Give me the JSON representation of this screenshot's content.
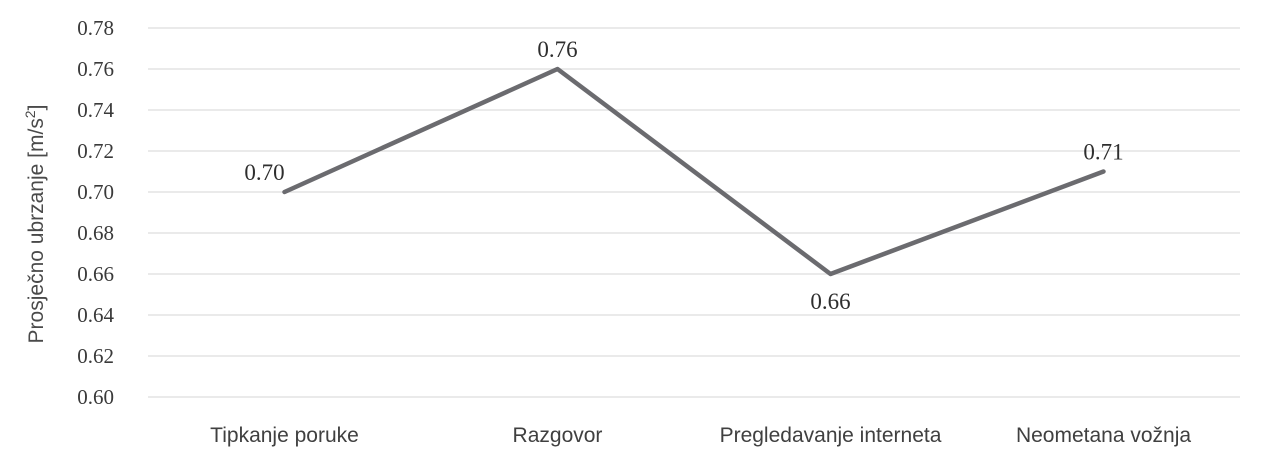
{
  "chart_data": {
    "type": "line",
    "categories": [
      "Tipkanje poruke",
      "Razgovor",
      "Pregledavanje interneta",
      "Neometana vožnja"
    ],
    "series": [
      {
        "values": [
          0.7,
          0.76,
          0.66,
          0.71
        ]
      }
    ],
    "data_labels": [
      "0.70",
      "0.76",
      "0.66",
      "0.71"
    ],
    "label_positions": [
      "above",
      "above",
      "below",
      "above"
    ],
    "ylabel": {
      "text": "Prosječno ubrzanje [m/s",
      "sup": "2",
      "suffix": "]"
    },
    "xlabel": "",
    "title": "",
    "ylim": [
      0.6,
      0.78
    ],
    "yticks": [
      "0.60",
      "0.62",
      "0.64",
      "0.66",
      "0.68",
      "0.70",
      "0.72",
      "0.74",
      "0.76",
      "0.78"
    ],
    "grid": true,
    "legend": "none",
    "colors": {
      "line": "#6b6b6f",
      "grid": "#e3e3e3"
    }
  }
}
